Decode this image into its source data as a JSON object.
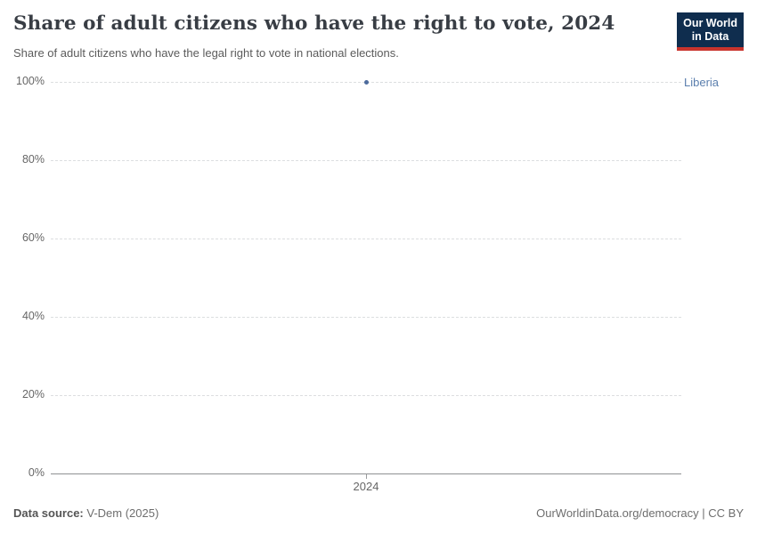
{
  "header": {
    "title": "Share of adult citizens who have the right to vote, 2024",
    "subtitle": "Share of adult citizens who have the legal right to vote in national elections.",
    "logo": {
      "line1": "Our World",
      "line2": "in Data",
      "background_color": "#0f2d4e",
      "accent_color": "#c9342d"
    }
  },
  "chart_data": {
    "type": "scatter",
    "title": "Share of adult citizens who have the right to vote, 2024",
    "subtitle": "Share of adult citizens who have the legal right to vote in national elections.",
    "x": [
      2024
    ],
    "xtick_labels": [
      "2024"
    ],
    "series": [
      {
        "name": "Liberia",
        "values": [
          100
        ],
        "color": "#4c6a9c",
        "label_color": "#5b7fae"
      }
    ],
    "xlabel": "",
    "ylabel": "",
    "ylim": [
      0,
      100
    ],
    "yticks": [
      0,
      20,
      40,
      60,
      80,
      100
    ],
    "ytick_labels": [
      "0%",
      "20%",
      "40%",
      "60%",
      "80%",
      "100%"
    ],
    "grid": "horizontal-dashed",
    "gridline_color": "#dcdee0",
    "axis_line_color": "#8f9193",
    "legend_position": "right-of-plot"
  },
  "footer": {
    "source_label": "Data source:",
    "source_value": " V-Dem (2025)",
    "right_text": "OurWorldinData.org/democracy | CC BY"
  }
}
